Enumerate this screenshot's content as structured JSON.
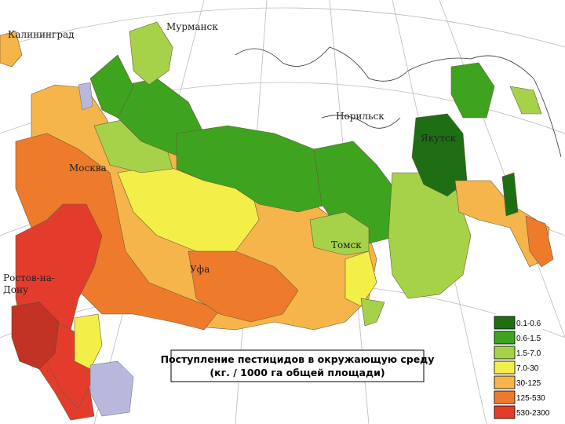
{
  "map": {
    "title": [
      "Поступление пестицидов в окружающую среду",
      "(кг. / 1000 га общей площади)"
    ],
    "cities": [
      {
        "label": "Калининград"
      },
      {
        "label": "Мурманск"
      },
      {
        "label": "Москва"
      },
      {
        "label": "Норильск"
      },
      {
        "label": "Якутск"
      },
      {
        "label": "Томск"
      },
      {
        "label": "Уфа"
      },
      {
        "label": [
          "Ростов-на-",
          "Дону"
        ]
      }
    ],
    "legend": [
      {
        "label": "0.1-0.6",
        "color": "#1e6e14"
      },
      {
        "label": "0.6-1.5",
        "color": "#3ea31e"
      },
      {
        "label": "1.5-7.0",
        "color": "#a6d24a"
      },
      {
        "label": "7.0-30",
        "color": "#f4ef48"
      },
      {
        "label": "30-125",
        "color": "#f5b54a"
      },
      {
        "label": "125-530",
        "color": "#ee7b2c"
      },
      {
        "label": "530-2300",
        "color": "#e43c2c"
      }
    ]
  }
}
